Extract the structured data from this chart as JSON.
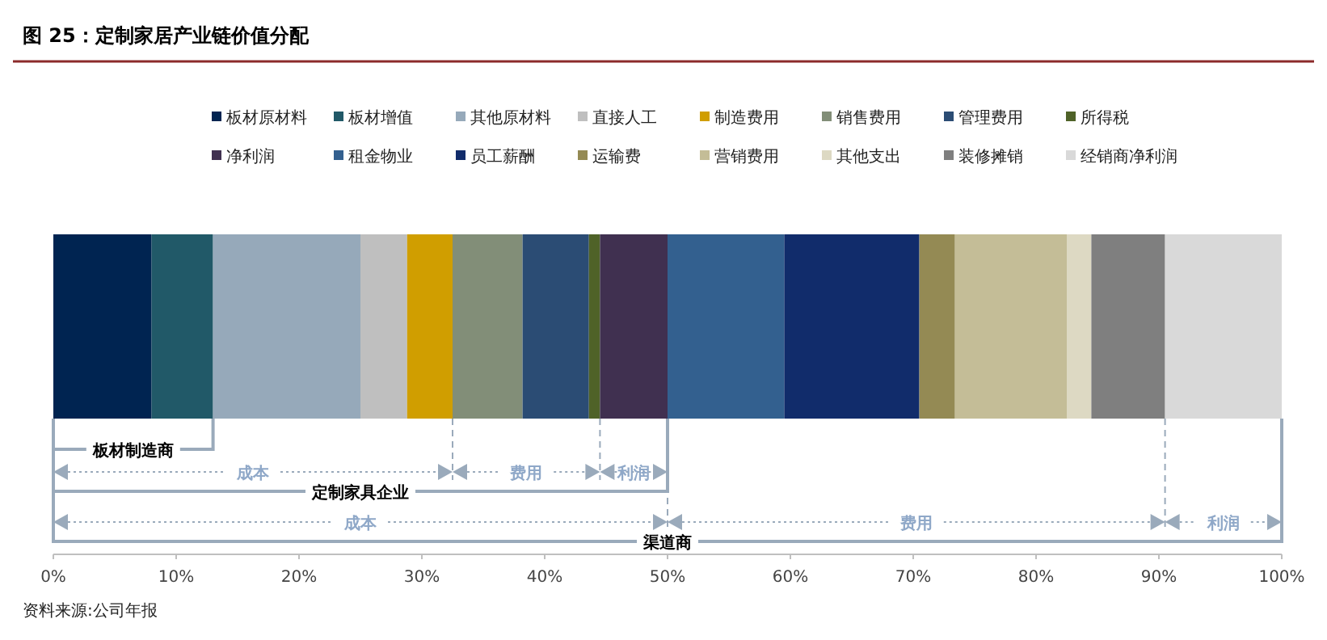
{
  "chart_data": {
    "type": "bar",
    "orientation": "horizontal",
    "stacked": true,
    "title": "图 25：定制家居产业链价值分配",
    "categories": [
      null
    ],
    "series": [
      {
        "name": "板材原材料",
        "color": "#002451",
        "values": [
          8
        ]
      },
      {
        "name": "板材增值",
        "color": "#215968",
        "values": [
          5
        ]
      },
      {
        "name": "其他原材料",
        "color": "#96a9ba",
        "values": [
          12
        ]
      },
      {
        "name": "直接人工",
        "color": "#bfbfbf",
        "values": [
          3.8
        ]
      },
      {
        "name": "制造费用",
        "color": "#d09e00",
        "values": [
          3.7
        ]
      },
      {
        "name": "销售费用",
        "color": "#828e78",
        "values": [
          5.7
        ]
      },
      {
        "name": "管理费用",
        "color": "#2b4c74",
        "values": [
          5.4
        ]
      },
      {
        "name": "所得税",
        "color": "#4f6228",
        "values": [
          0.9
        ]
      },
      {
        "name": "净利润",
        "color": "#403050",
        "values": [
          5.5
        ]
      },
      {
        "name": "租金物业",
        "color": "#33608f",
        "values": [
          9.5
        ]
      },
      {
        "name": "员工薪酬",
        "color": "#112c6b",
        "values": [
          11
        ]
      },
      {
        "name": "运输费",
        "color": "#948a54",
        "values": [
          2.9
        ]
      },
      {
        "name": "营销费用",
        "color": "#c4bd97",
        "values": [
          9.1
        ]
      },
      {
        "name": "其他支出",
        "color": "#ddd9c3",
        "values": [
          2
        ]
      },
      {
        "name": "装修摊销",
        "color": "#7f7f7f",
        "values": [
          6
        ]
      },
      {
        "name": "经销商净利润",
        "color": "#d9d9d9",
        "values": [
          9.5
        ]
      }
    ],
    "xlim": [
      0,
      100
    ],
    "xticks": [
      {
        "value": 0,
        "label": "0%"
      },
      {
        "value": 10,
        "label": "10%"
      },
      {
        "value": 20,
        "label": "20%"
      },
      {
        "value": 30,
        "label": "30%"
      },
      {
        "value": 40,
        "label": "40%"
      },
      {
        "value": 50,
        "label": "50%"
      },
      {
        "value": 60,
        "label": "60%"
      },
      {
        "value": 70,
        "label": "70%"
      },
      {
        "value": 80,
        "label": "80%"
      },
      {
        "value": 90,
        "label": "90%"
      },
      {
        "value": 100,
        "label": "100%"
      }
    ],
    "legend": "top",
    "grid": false,
    "annotations": [
      "板材制造商",
      "成本",
      "费用",
      "利润",
      "定制家具企业",
      "成本",
      "费用",
      "利润",
      "渠道商",
      "资料来源:公司年报"
    ]
  }
}
